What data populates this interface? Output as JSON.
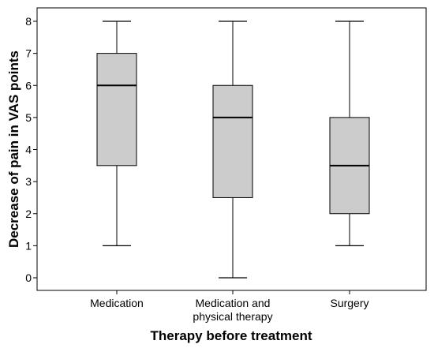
{
  "chart_data": {
    "type": "boxplot",
    "title": "",
    "xlabel": "Therapy before treatment",
    "ylabel": "Decrease of pain in VAS points",
    "ylim": [
      -0.4,
      8.4
    ],
    "yticks": [
      0,
      1,
      2,
      3,
      4,
      5,
      6,
      7,
      8
    ],
    "grid": false,
    "box_fill": "#cccccc",
    "categories": [
      {
        "lines": [
          "Medication"
        ]
      },
      {
        "lines": [
          "Medication and",
          "physical therapy"
        ]
      },
      {
        "lines": [
          "Surgery"
        ]
      }
    ],
    "boxes": [
      {
        "min": 1,
        "q1": 3.5,
        "median": 6,
        "q3": 7,
        "max": 8
      },
      {
        "min": 0,
        "q1": 2.5,
        "median": 5,
        "q3": 6,
        "max": 8
      },
      {
        "min": 1,
        "q1": 2,
        "median": 3.5,
        "q3": 5,
        "max": 8
      }
    ]
  }
}
